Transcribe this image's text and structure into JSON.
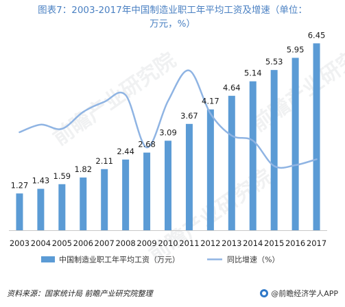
{
  "title": {
    "line1": "图表7：2003-2017年中国制造业职工年平均工资及增速（单位：",
    "line2": "万元，%）"
  },
  "source": "资料来源：国家统计局 前瞻产业研究院整理",
  "brand": "@前瞻经济学人APP",
  "watermark_logo": "前瞻产业研究院",
  "colors": {
    "title": "#4a80c2",
    "bar": "#5b9bd5",
    "line": "#8fb4e3",
    "axis": "#c8c8c8"
  },
  "chart_data": {
    "type": "bar",
    "categories": [
      "2003",
      "2004",
      "2005",
      "2006",
      "2007",
      "2008",
      "2009",
      "2010",
      "2011",
      "2012",
      "2013",
      "2014",
      "2015",
      "2016",
      "2017"
    ],
    "series": [
      {
        "name": "中国制造业职工年平均工资（万元）",
        "type": "bar",
        "values": [
          1.27,
          1.43,
          1.59,
          1.82,
          2.11,
          2.44,
          2.68,
          3.09,
          3.67,
          4.17,
          4.64,
          5.14,
          5.53,
          5.95,
          6.45
        ],
        "data_labels": [
          "1.27",
          "1.43",
          "1.59",
          "1.82",
          "2.11",
          "2.44",
          "2.68",
          "3.09",
          "3.67",
          "4.17",
          "4.64",
          "5.14",
          "5.53",
          "5.95",
          "6.45"
        ]
      },
      {
        "name": "同比增速（%）",
        "type": "line",
        "smooth": true,
        "secondary_axis": true,
        "values": [
          11.6,
          12.5,
          12.0,
          14.0,
          15.2,
          16.0,
          9.8,
          15.3,
          18.9,
          13.8,
          11.2,
          10.6,
          7.6,
          7.7,
          8.4
        ]
      }
    ],
    "ylim": [
      0,
      7
    ],
    "y2lim": [
      0,
      24
    ],
    "grid": false,
    "legend_position": "bottom"
  }
}
